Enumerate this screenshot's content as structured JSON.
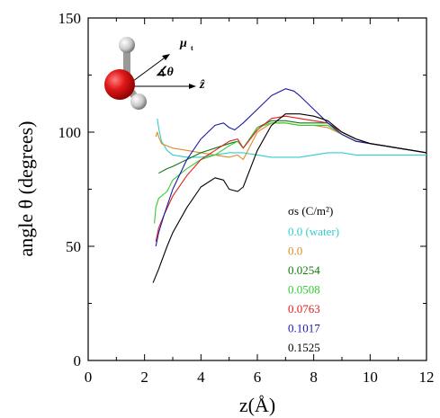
{
  "chart_data": {
    "type": "line",
    "title": "",
    "xlabel": "z(Å)",
    "ylabel": "angle θ (degrees)",
    "xlim": [
      0,
      12
    ],
    "ylim": [
      0,
      150
    ],
    "xticks": [
      0,
      2,
      4,
      6,
      8,
      10,
      12
    ],
    "yticks": [
      0,
      50,
      100,
      150
    ],
    "grid": false,
    "legend_title": "σs (C/m²)",
    "legend_position": "center-right",
    "inset": {
      "vector_label": "μ",
      "angle_label": "∡θ",
      "axis_label": "ẑ"
    },
    "series": [
      {
        "name": "0.0 (water)",
        "color": "#33cccc",
        "x": [
          2.45,
          2.5,
          2.6,
          2.8,
          3.0,
          3.5,
          4.0,
          4.5,
          5.0,
          5.5,
          6.0,
          6.5,
          7.0,
          7.5,
          8.0,
          8.5,
          9.0,
          9.5,
          10.0,
          10.5,
          11.0,
          11.5,
          12.0
        ],
        "y": [
          106,
          102,
          96,
          92,
          90,
          89,
          89,
          90,
          91,
          91,
          90,
          89,
          89,
          89,
          90,
          91,
          91,
          90,
          90,
          90,
          90,
          90,
          90
        ]
      },
      {
        "name": "0.0",
        "color": "#d98c26",
        "x": [
          2.4,
          2.45,
          2.5,
          2.6,
          2.8,
          3.0,
          3.5,
          4.0,
          4.5,
          5.0,
          5.3,
          5.5,
          6.0,
          6.5,
          7.0,
          7.5,
          8.0,
          8.5,
          9.0,
          9.5,
          10.0,
          10.5,
          11.0,
          11.5,
          12.0
        ],
        "y": [
          98,
          100,
          98,
          95,
          94,
          93,
          92,
          91,
          90,
          89,
          90,
          88,
          100,
          104,
          104,
          103,
          103,
          102,
          99,
          96,
          95,
          94,
          93,
          92,
          91
        ]
      },
      {
        "name": "0.0254",
        "color": "#117a11",
        "x": [
          2.5,
          2.8,
          3.0,
          3.5,
          4.0,
          4.5,
          5.0,
          5.3,
          5.5,
          6.0,
          6.5,
          7.0,
          7.5,
          8.0,
          8.5,
          9.0,
          9.5,
          10.0,
          10.5,
          11.0,
          11.5,
          12.0
        ],
        "y": [
          82,
          84,
          85,
          88,
          91,
          93,
          95,
          96,
          93,
          102,
          105,
          105,
          104,
          104,
          104,
          100,
          97,
          95,
          94,
          93,
          92,
          91
        ]
      },
      {
        "name": "0.0508",
        "color": "#33cc33",
        "x": [
          2.35,
          2.4,
          2.5,
          2.6,
          2.8,
          3.0,
          3.5,
          4.0,
          4.5,
          5.0,
          5.3,
          5.5,
          6.0,
          6.5,
          7.0,
          7.5,
          8.0,
          8.5,
          9.0,
          9.5,
          10.0,
          10.5,
          11.0,
          11.5,
          12.0
        ],
        "y": [
          60,
          67,
          71,
          72,
          74,
          79,
          84,
          88,
          90,
          94,
          96,
          93,
          102,
          104,
          104,
          103,
          103,
          103,
          99,
          96,
          95,
          94,
          93,
          92,
          91
        ]
      },
      {
        "name": "0.0763",
        "color": "#e02020",
        "x": [
          2.4,
          2.5,
          2.7,
          3.0,
          3.5,
          4.0,
          4.5,
          5.0,
          5.3,
          5.5,
          6.0,
          6.5,
          7.0,
          7.5,
          8.0,
          8.5,
          9.0,
          9.5,
          10.0,
          10.5,
          11.0,
          11.5,
          12.0
        ],
        "y": [
          52,
          58,
          64,
          72,
          81,
          88,
          92,
          96,
          97,
          93,
          101,
          106,
          107,
          106,
          105,
          104,
          100,
          97,
          95,
          94,
          93,
          92,
          91
        ]
      },
      {
        "name": "0.1017",
        "color": "#1a1aa6",
        "x": [
          2.4,
          2.5,
          2.7,
          3.0,
          3.5,
          4.0,
          4.5,
          4.8,
          5.0,
          5.2,
          5.5,
          6.0,
          6.5,
          7.0,
          7.3,
          7.5,
          8.0,
          8.5,
          9.0,
          9.5,
          10.0,
          10.5,
          11.0,
          11.5,
          12.0
        ],
        "y": [
          50,
          56,
          64,
          75,
          88,
          97,
          103,
          104,
          102,
          101,
          104,
          110,
          116,
          119,
          118,
          116,
          110,
          104,
          99,
          96,
          95,
          94,
          93,
          92,
          91
        ]
      },
      {
        "name": "0.1525",
        "color": "#000000",
        "x": [
          2.3,
          2.5,
          2.8,
          3.0,
          3.5,
          4.0,
          4.5,
          4.8,
          5.0,
          5.3,
          5.5,
          6.0,
          6.5,
          7.0,
          7.5,
          8.0,
          8.5,
          9.0,
          9.5,
          10.0,
          10.5,
          11.0,
          11.5,
          12.0
        ],
        "y": [
          34,
          40,
          50,
          56,
          67,
          76,
          80,
          79,
          75,
          74,
          76,
          92,
          103,
          108,
          108,
          107,
          105,
          100,
          97,
          95,
          94,
          93,
          92,
          91
        ]
      }
    ]
  }
}
